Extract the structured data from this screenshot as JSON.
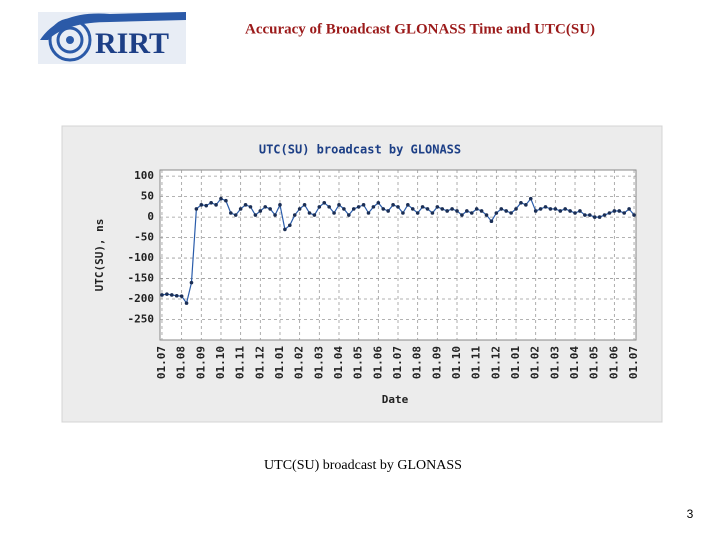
{
  "logo_text": "RIRT",
  "slide_title": "Accuracy of Broadcast GLONASS Time and UTC(SU)",
  "caption": "UTC(SU) broadcast by GLONASS",
  "page_number": "3",
  "chart_data": {
    "type": "line",
    "title": "UTC(SU) broadcast by GLONASS",
    "x_label": "Date",
    "y_label": "UTC(SU), ns",
    "xlim": [
      -0.1,
      24.1
    ],
    "ylim": [
      -300,
      115
    ],
    "xticks": [
      {
        "value": 0,
        "label": "01.07"
      },
      {
        "value": 1,
        "label": "01.08"
      },
      {
        "value": 2,
        "label": "01.09"
      },
      {
        "value": 3,
        "label": "01.10"
      },
      {
        "value": 4,
        "label": "01.11"
      },
      {
        "value": 5,
        "label": "01.12"
      },
      {
        "value": 6,
        "label": "01.01"
      },
      {
        "value": 7,
        "label": "01.02"
      },
      {
        "value": 8,
        "label": "01.03"
      },
      {
        "value": 9,
        "label": "01.04"
      },
      {
        "value": 10,
        "label": "01.05"
      },
      {
        "value": 11,
        "label": "01.06"
      },
      {
        "value": 12,
        "label": "01.07"
      },
      {
        "value": 13,
        "label": "01.08"
      },
      {
        "value": 14,
        "label": "01.09"
      },
      {
        "value": 15,
        "label": "01.10"
      },
      {
        "value": 16,
        "label": "01.11"
      },
      {
        "value": 17,
        "label": "01.12"
      },
      {
        "value": 18,
        "label": "01.01"
      },
      {
        "value": 19,
        "label": "01.02"
      },
      {
        "value": 20,
        "label": "01.03"
      },
      {
        "value": 21,
        "label": "01.04"
      },
      {
        "value": 22,
        "label": "01.05"
      },
      {
        "value": 23,
        "label": "01.06"
      },
      {
        "value": 24,
        "label": "01.07"
      }
    ],
    "yticks": [
      -250,
      -200,
      -150,
      -100,
      -50,
      0,
      50,
      100
    ],
    "grid": true,
    "series": [
      {
        "color": "#2a5caa",
        "x": [
          0,
          0.25,
          0.5,
          0.75,
          1,
          1.25,
          1.5,
          1.75,
          2,
          2.25,
          2.5,
          2.75,
          3,
          3.25,
          3.5,
          3.75,
          4,
          4.25,
          4.5,
          4.75,
          5,
          5.25,
          5.5,
          5.75,
          6,
          6.25,
          6.5,
          6.75,
          7,
          7.25,
          7.5,
          7.75,
          8,
          8.25,
          8.5,
          8.75,
          9,
          9.25,
          9.5,
          9.75,
          10,
          10.25,
          10.5,
          10.75,
          11,
          11.25,
          11.5,
          11.75,
          12,
          12.25,
          12.5,
          12.75,
          13,
          13.25,
          13.5,
          13.75,
          14,
          14.25,
          14.5,
          14.75,
          15,
          15.25,
          15.5,
          15.75,
          16,
          16.25,
          16.5,
          16.75,
          17,
          17.25,
          17.5,
          17.75,
          18,
          18.25,
          18.5,
          18.75,
          19,
          19.25,
          19.5,
          19.75,
          20,
          20.25,
          20.5,
          20.75,
          21,
          21.25,
          21.5,
          21.75,
          22,
          22.25,
          22.5,
          22.75,
          23,
          23.25,
          23.5,
          23.75,
          24
        ],
        "values": [
          -190,
          -188,
          -190,
          -192,
          -193,
          -210,
          -160,
          20,
          30,
          28,
          35,
          30,
          45,
          40,
          10,
          5,
          20,
          30,
          25,
          5,
          15,
          25,
          20,
          5,
          30,
          -30,
          -20,
          5,
          20,
          30,
          10,
          5,
          25,
          35,
          25,
          10,
          30,
          20,
          5,
          20,
          25,
          30,
          10,
          25,
          35,
          20,
          15,
          30,
          25,
          10,
          30,
          20,
          10,
          25,
          20,
          10,
          25,
          20,
          15,
          20,
          15,
          5,
          15,
          10,
          20,
          15,
          5,
          -10,
          10,
          20,
          15,
          10,
          20,
          35,
          30,
          45,
          15,
          20,
          25,
          20,
          20,
          15,
          20,
          15,
          10,
          15,
          5,
          5,
          0,
          0,
          5,
          10,
          15,
          15,
          10,
          20,
          5
        ]
      }
    ]
  }
}
